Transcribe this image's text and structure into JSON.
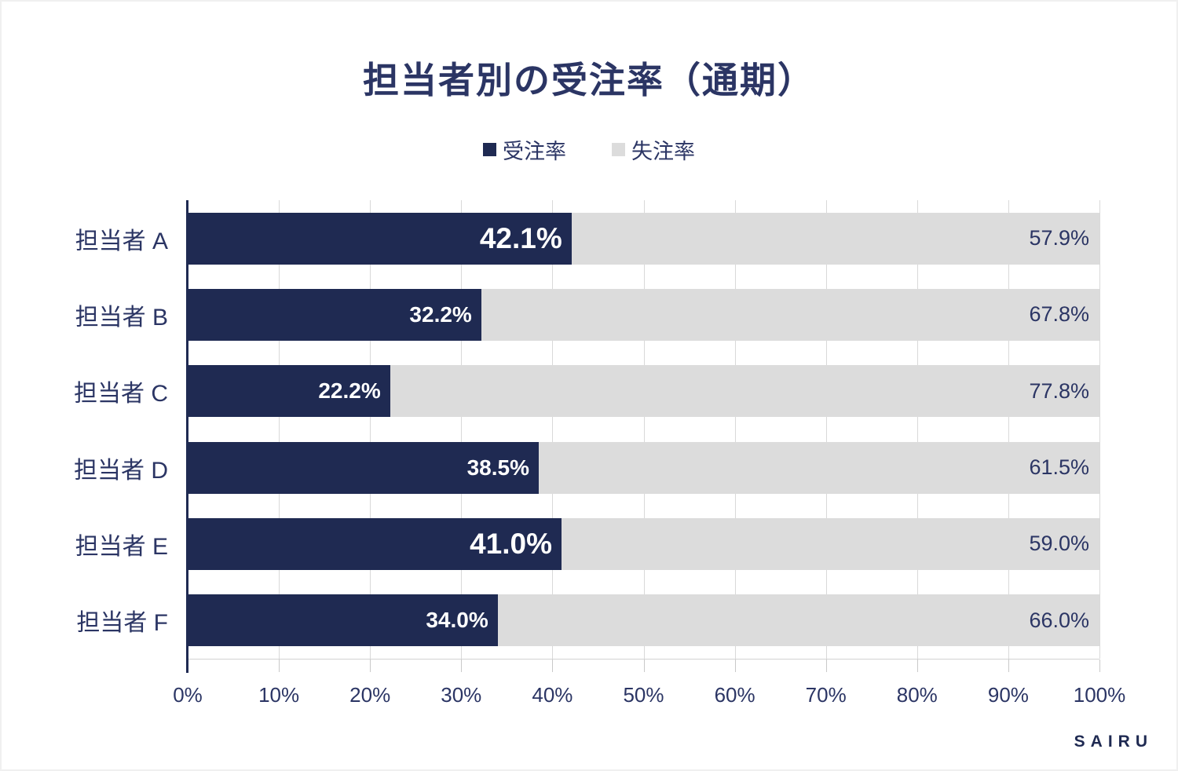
{
  "title": "担当者別の受注率（通期）",
  "legend": {
    "items": [
      {
        "label": "受注率",
        "color": "#1f2a52"
      },
      {
        "label": "失注率",
        "color": "#dcdcdc"
      }
    ]
  },
  "watermark": "SAIRU",
  "colors": {
    "won_bar": "#1f2a52",
    "lost_bar": "#dcdcdc",
    "text_navy": "#2b3564",
    "gridline": "#d9d9d9",
    "won_value_text": "#ffffff",
    "lost_value_text": "#2b3564"
  },
  "chart_data": {
    "type": "bar",
    "orientation": "horizontal",
    "stacked": true,
    "title": "担当者別の受注率（通期）",
    "categories": [
      "担当者 A",
      "担当者 B",
      "担当者 C",
      "担当者 D",
      "担当者 E",
      "担当者 F"
    ],
    "series": [
      {
        "name": "受注率",
        "color": "#1f2a52",
        "values": [
          42.1,
          32.2,
          22.2,
          38.5,
          41.0,
          34.0
        ]
      },
      {
        "name": "失注率",
        "color": "#dcdcdc",
        "values": [
          57.9,
          67.8,
          77.8,
          61.5,
          59.0,
          66.0
        ]
      }
    ],
    "won_value_labels": [
      "42.1%",
      "32.2%",
      "22.2%",
      "38.5%",
      "41.0%",
      "34.0%"
    ],
    "lost_value_labels": [
      "57.9%",
      "67.8%",
      "77.8%",
      "61.5%",
      "59.0%",
      "66.0%"
    ],
    "emphasized_rows": [
      0,
      4
    ],
    "x_ticks": [
      "0%",
      "10%",
      "20%",
      "30%",
      "40%",
      "50%",
      "60%",
      "70%",
      "80%",
      "90%",
      "100%"
    ],
    "xlim": [
      0,
      100
    ],
    "grid": "vertical",
    "legend_position": "top"
  }
}
